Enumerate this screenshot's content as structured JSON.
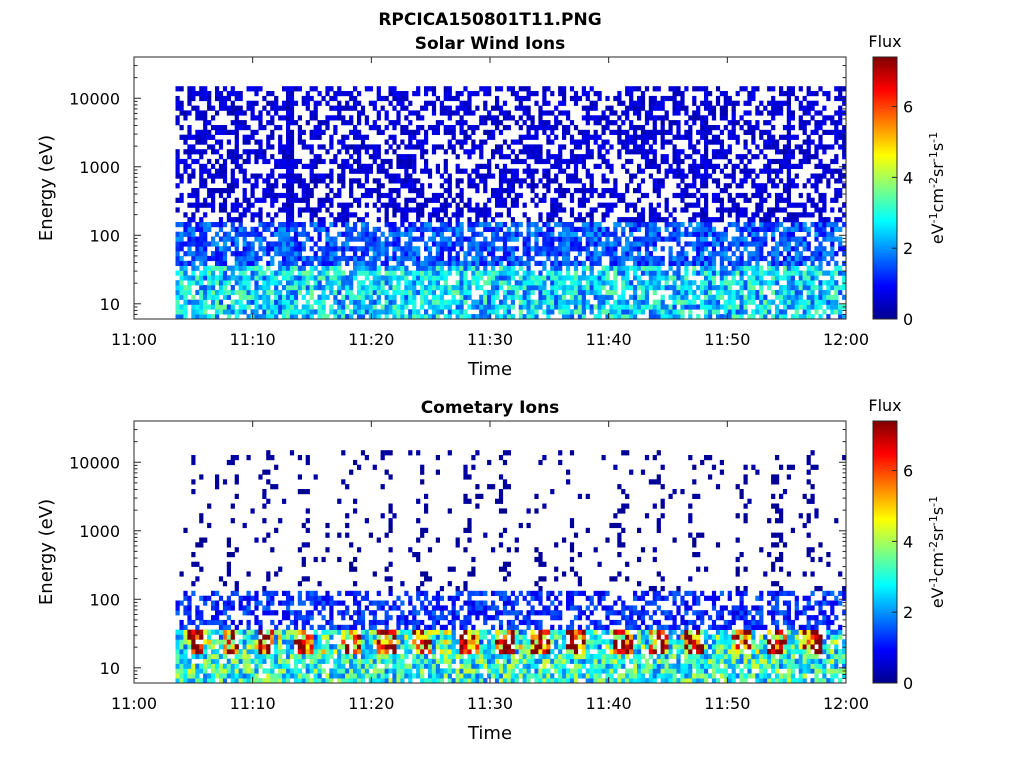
{
  "figure": {
    "title": "RPCICA150801T11.PNG"
  },
  "chart_data": [
    {
      "type": "heatmap",
      "title": "Solar Wind Ions",
      "xlabel": "Time",
      "ylabel": "Energy (eV)",
      "x_ticks": [
        "11:00",
        "11:10",
        "11:20",
        "11:30",
        "11:40",
        "11:50",
        "12:00"
      ],
      "xlim": [
        "11:00",
        "12:00"
      ],
      "y_scale": "log",
      "y_ticks": [
        10,
        100,
        1000,
        10000
      ],
      "ylim": [
        6,
        40000
      ],
      "data_start": "11:03:30",
      "colorbar": {
        "title": "Flux",
        "unit_label": "eV-1cm-2sr-1s-1",
        "ticks": [
          0,
          2,
          4,
          6
        ],
        "range": [
          0,
          7.4
        ],
        "colormap": "jet"
      },
      "summary": [
        {
          "energy_band": "6-35 eV",
          "typical_flux": 2.5
        },
        {
          "energy_band": "35-150 eV",
          "typical_flux": 1.5
        },
        {
          "energy_band": "150-15000 eV",
          "typical_flux": 0.6
        }
      ],
      "features": [
        {
          "time": "11:13",
          "note": "vertical streak of counts across all energies"
        },
        {
          "time": "11:48",
          "note": "vertical streak of counts across all energies"
        },
        {
          "time": "11:55",
          "note": "vertical streak of counts across all energies"
        }
      ]
    },
    {
      "type": "heatmap",
      "title": "Cometary Ions",
      "xlabel": "Time",
      "ylabel": "Energy (eV)",
      "x_ticks": [
        "11:00",
        "11:10",
        "11:20",
        "11:30",
        "11:40",
        "11:50",
        "12:00"
      ],
      "xlim": [
        "11:00",
        "12:00"
      ],
      "y_scale": "log",
      "y_ticks": [
        10,
        100,
        1000,
        10000
      ],
      "ylim": [
        6,
        40000
      ],
      "data_start": "11:03:30",
      "colorbar": {
        "title": "Flux",
        "unit_label": "eV-1cm-2sr-1s-1",
        "ticks": [
          0,
          2,
          4,
          6
        ],
        "range": [
          0,
          7.4
        ],
        "colormap": "jet"
      },
      "summary": [
        {
          "energy_band": "15-35 eV",
          "typical_flux": 5.5
        },
        {
          "energy_band": "6-15 eV",
          "typical_flux": 3.0
        },
        {
          "energy_band": "35-130 eV",
          "typical_flux": 1.2
        },
        {
          "energy_band": "130-15000 eV",
          "typical_flux": 0.2
        }
      ],
      "features": [
        {
          "note": "periodic flux maxima near 20 eV, about 3.3 minutes apart",
          "times": [
            "11:05",
            "11:08",
            "11:11",
            "11:14",
            "11:18",
            "11:21",
            "11:24",
            "11:28",
            "11:31",
            "11:34",
            "11:37",
            "11:41",
            "11:44",
            "11:47",
            "11:51",
            "11:54",
            "11:57"
          ]
        }
      ]
    }
  ]
}
